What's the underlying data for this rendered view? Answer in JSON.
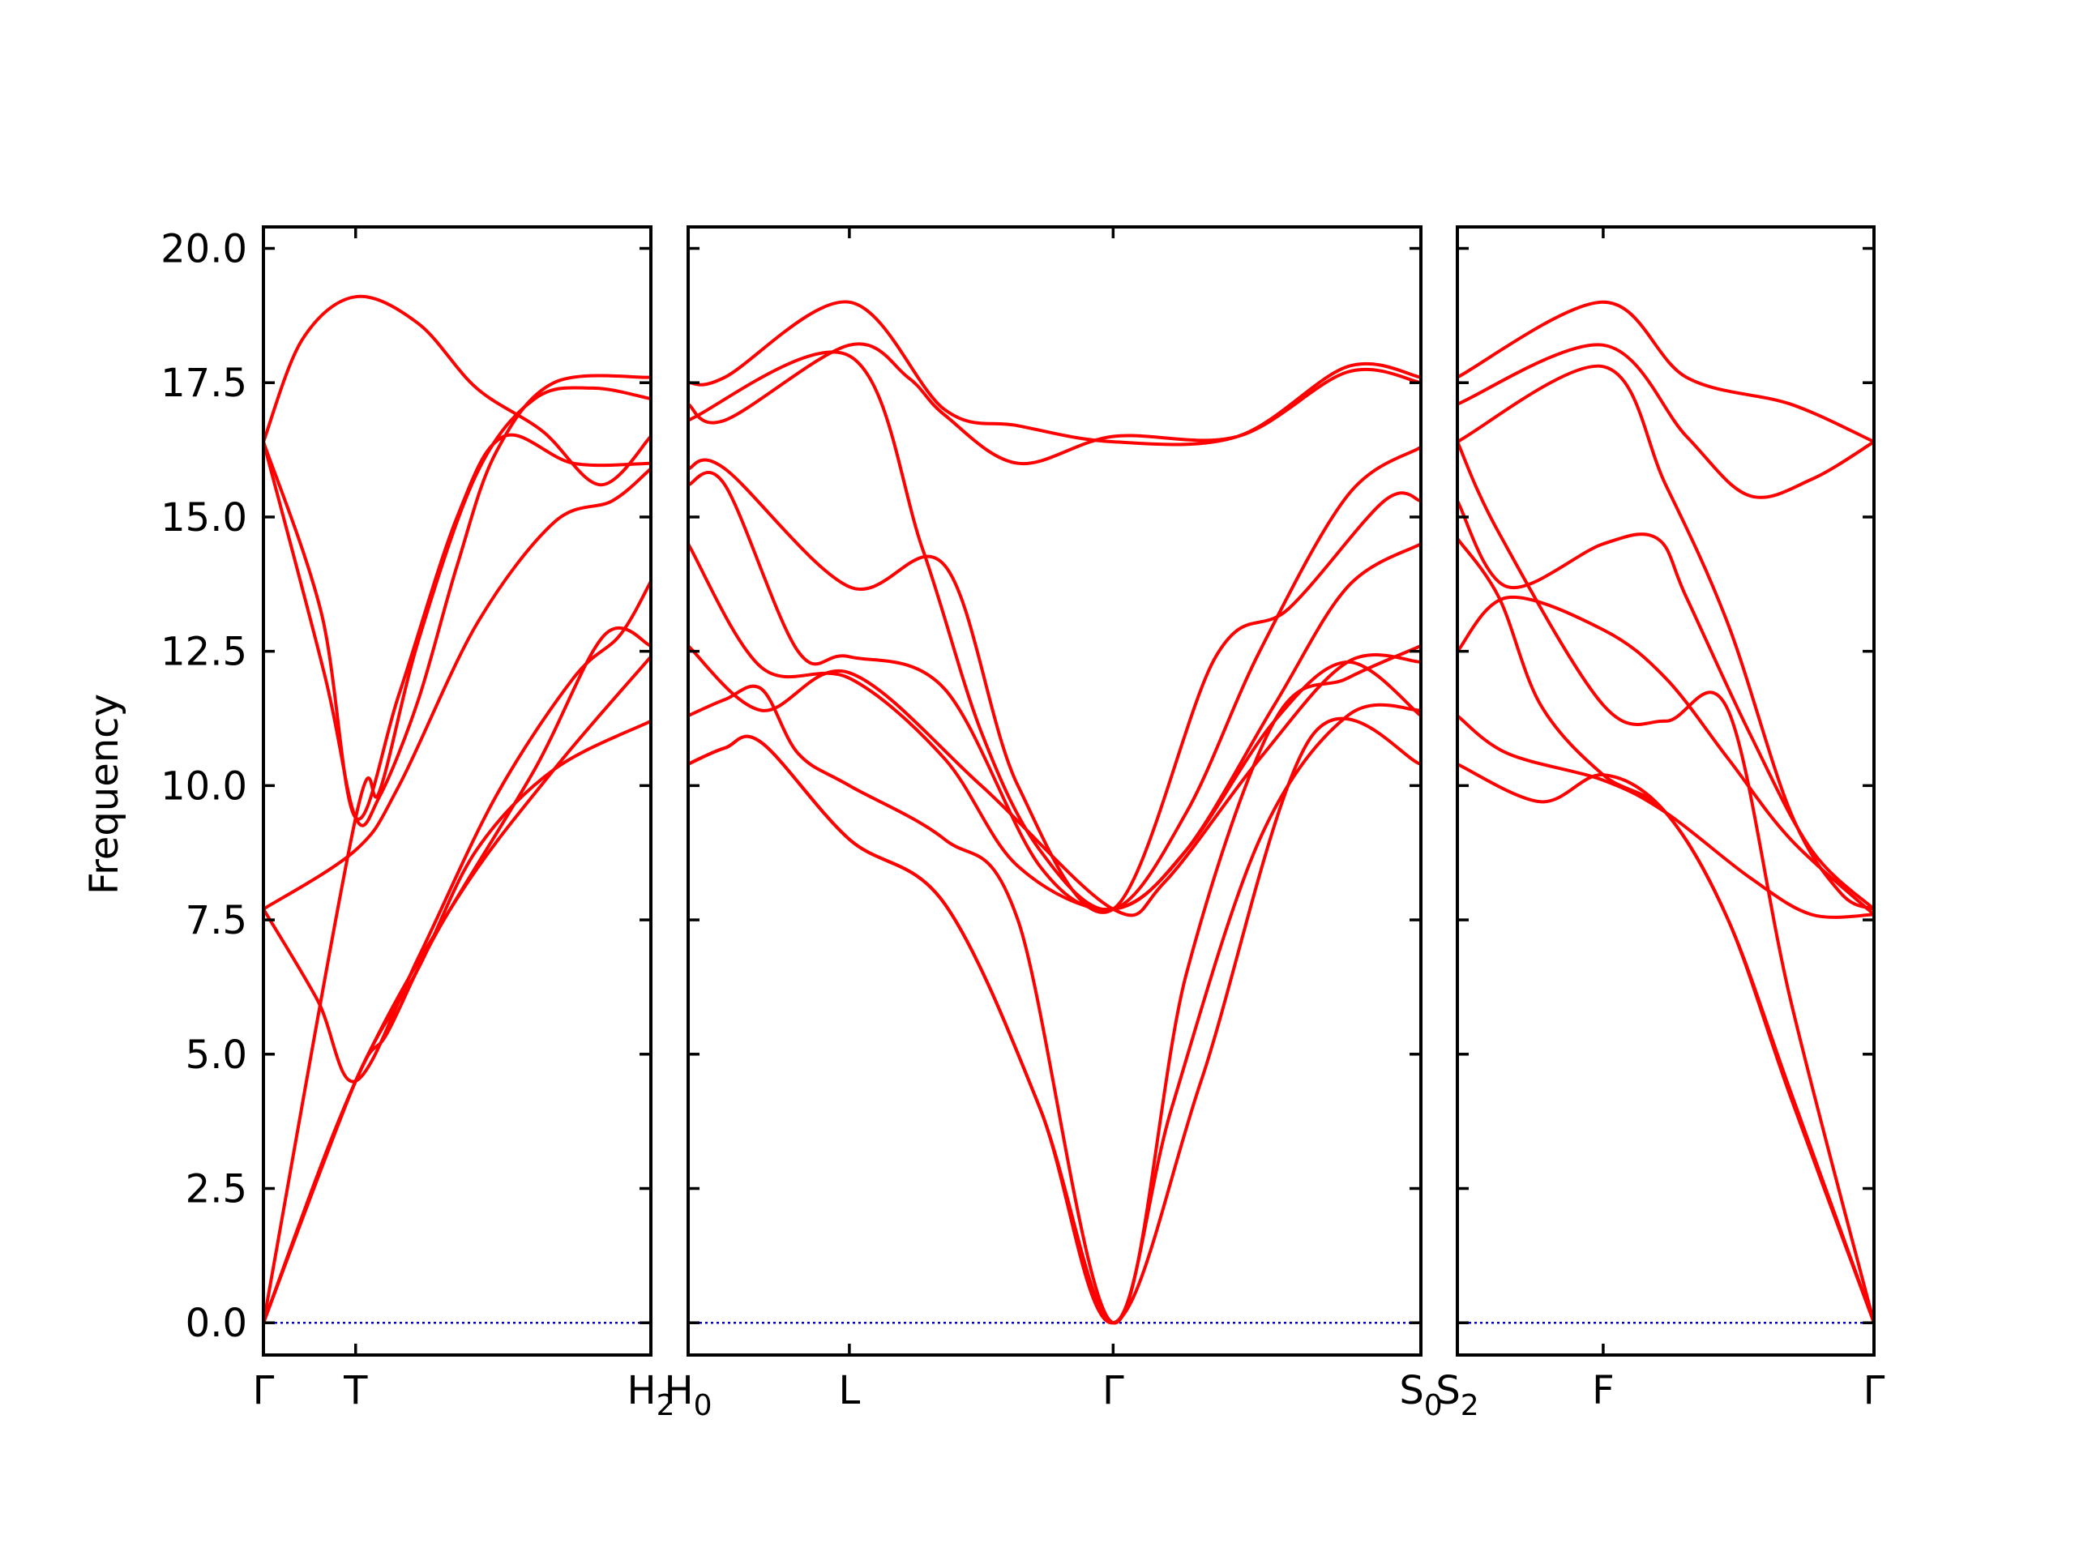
{
  "chart_data": {
    "type": "line",
    "ylabel": "Frequency",
    "ylim": [
      -0.6,
      20.4
    ],
    "yticks": [
      0.0,
      2.5,
      5.0,
      7.5,
      10.0,
      12.5,
      15.0,
      17.5,
      20.0
    ],
    "ytick_labels": [
      "0.0",
      "2.5",
      "5.0",
      "7.5",
      "10.0",
      "12.5",
      "15.0",
      "17.5",
      "20.0"
    ],
    "colors": {
      "bands": "#ff0000",
      "zero_line": "#0000cc",
      "frame": "#000000"
    },
    "panels": [
      {
        "name": "Γ-T-H2",
        "xticks": [
          {
            "label": "Γ",
            "sub": "",
            "pos": 0.0
          },
          {
            "label": "T",
            "sub": "",
            "pos": 0.238
          },
          {
            "label": "H",
            "sub": "2",
            "pos": 1.0
          }
        ],
        "bands": [
          [
            [
              0,
              0
            ],
            [
              0.238,
              4.5
            ],
            [
              0.5,
              7.9
            ],
            [
              0.75,
              10.3
            ],
            [
              1,
              12.4
            ]
          ],
          [
            [
              0,
              0
            ],
            [
              0.238,
              9.4
            ],
            [
              0.3,
              9.9
            ],
            [
              0.4,
              12.7
            ],
            [
              0.55,
              15.8
            ],
            [
              0.7,
              17.2
            ],
            [
              0.85,
              17.4
            ],
            [
              1,
              17.2
            ]
          ],
          [
            [
              0,
              7.7
            ],
            [
              0.14,
              6.0
            ],
            [
              0.238,
              4.5
            ],
            [
              0.4,
              6.8
            ],
            [
              0.6,
              9.8
            ],
            [
              0.8,
              12.0
            ],
            [
              0.92,
              12.8
            ],
            [
              1,
              13.8
            ]
          ],
          [
            [
              0,
              7.7
            ],
            [
              0.238,
              8.8
            ],
            [
              0.35,
              10.0
            ],
            [
              0.55,
              13.0
            ],
            [
              0.75,
              14.9
            ],
            [
              0.9,
              15.3
            ],
            [
              1,
              15.9
            ]
          ],
          [
            [
              0,
              16.4
            ],
            [
              0.16,
              12.0
            ],
            [
              0.238,
              9.4
            ],
            [
              0.3,
              9.8
            ],
            [
              0.4,
              11.6
            ],
            [
              0.5,
              14.1
            ],
            [
              0.6,
              16.2
            ],
            [
              0.75,
              17.5
            ],
            [
              1,
              17.6
            ]
          ],
          [
            [
              0,
              16.4
            ],
            [
              0.1,
              18.3
            ],
            [
              0.238,
              19.1
            ],
            [
              0.4,
              18.6
            ],
            [
              0.55,
              17.4
            ],
            [
              0.72,
              16.6
            ],
            [
              0.87,
              15.6
            ],
            [
              1,
              16.5
            ]
          ],
          [
            [
              0,
              0
            ],
            [
              0.238,
              4.5
            ],
            [
              0.32,
              5.4
            ],
            [
              0.45,
              7.3
            ],
            [
              0.7,
              10.3
            ],
            [
              0.88,
              12.8
            ],
            [
              1,
              12.6
            ]
          ],
          [
            [
              0,
              0
            ],
            [
              0.238,
              4.5
            ],
            [
              0.4,
              6.6
            ],
            [
              0.55,
              8.8
            ],
            [
              0.75,
              10.3
            ],
            [
              1,
              11.2
            ]
          ],
          [
            [
              0,
              16.4
            ],
            [
              0.15,
              13.2
            ],
            [
              0.238,
              9.4
            ],
            [
              0.35,
              11.7
            ],
            [
              0.5,
              15.0
            ],
            [
              0.62,
              16.5
            ],
            [
              0.8,
              16.0
            ],
            [
              1,
              16.0
            ]
          ]
        ]
      },
      {
        "name": "H0-L-Γ-S0",
        "xticks": [
          {
            "label": "H",
            "sub": "0",
            "pos": 0.0
          },
          {
            "label": "L",
            "sub": "",
            "pos": 0.22
          },
          {
            "label": "Γ",
            "sub": "",
            "pos": 0.58
          },
          {
            "label": "S",
            "sub": "0",
            "pos": 1.0
          }
        ],
        "bands": [
          [
            [
              0,
              17.5
            ],
            [
              0.05,
              17.6
            ],
            [
              0.22,
              19.0
            ],
            [
              0.35,
              17.0
            ],
            [
              0.45,
              16.7
            ],
            [
              0.58,
              16.4
            ],
            [
              0.75,
              16.5
            ],
            [
              0.9,
              17.8
            ],
            [
              1,
              17.6
            ]
          ],
          [
            [
              0,
              17.1
            ],
            [
              0.05,
              16.8
            ],
            [
              0.22,
              18.2
            ],
            [
              0.3,
              17.6
            ],
            [
              0.35,
              16.9
            ],
            [
              0.45,
              16.0
            ],
            [
              0.58,
              16.5
            ],
            [
              0.75,
              16.5
            ],
            [
              0.9,
              17.7
            ],
            [
              1,
              17.5
            ]
          ],
          [
            [
              0,
              16.8
            ],
            [
              0.22,
              18.0
            ],
            [
              0.32,
              14.4
            ],
            [
              0.4,
              11.0
            ],
            [
              0.48,
              8.8
            ],
            [
              0.58,
              7.7
            ],
            [
              0.68,
              9.5
            ],
            [
              0.78,
              12.5
            ],
            [
              0.9,
              15.4
            ],
            [
              1,
              16.3
            ]
          ],
          [
            [
              0,
              15.9
            ],
            [
              0.05,
              15.9
            ],
            [
              0.22,
              13.7
            ],
            [
              0.35,
              14.1
            ],
            [
              0.45,
              10.0
            ],
            [
              0.58,
              7.7
            ],
            [
              0.72,
              12.4
            ],
            [
              0.82,
              13.3
            ],
            [
              0.95,
              15.3
            ],
            [
              1,
              15.3
            ]
          ],
          [
            [
              0,
              15.6
            ],
            [
              0.05,
              15.6
            ],
            [
              0.15,
              12.5
            ],
            [
              0.22,
              12.4
            ],
            [
              0.35,
              11.8
            ],
            [
              0.48,
              8.5
            ],
            [
              0.58,
              7.7
            ],
            [
              0.68,
              8.8
            ],
            [
              0.8,
              11.5
            ],
            [
              0.9,
              13.7
            ],
            [
              1,
              14.5
            ]
          ],
          [
            [
              0,
              14.5
            ],
            [
              0.1,
              12.2
            ],
            [
              0.22,
              12.0
            ],
            [
              0.35,
              10.5
            ],
            [
              0.45,
              8.5
            ],
            [
              0.58,
              7.7
            ],
            [
              0.68,
              8.8
            ],
            [
              0.8,
              11.2
            ],
            [
              0.9,
              12.3
            ],
            [
              1,
              11.3
            ]
          ],
          [
            [
              0,
              12.6
            ],
            [
              0.1,
              11.4
            ],
            [
              0.22,
              12.1
            ],
            [
              0.4,
              10.0
            ],
            [
              0.58,
              7.7
            ],
            [
              0.65,
              8.2
            ],
            [
              0.78,
              10.5
            ],
            [
              0.9,
              12.3
            ],
            [
              1,
              12.3
            ]
          ],
          [
            [
              0,
              11.3
            ],
            [
              0.05,
              11.6
            ],
            [
              0.1,
              11.8
            ],
            [
              0.15,
              10.6
            ],
            [
              0.22,
              10.0
            ],
            [
              0.35,
              9.0
            ],
            [
              0.45,
              7.5
            ],
            [
              0.58,
              0
            ],
            [
              0.68,
              6.5
            ],
            [
              0.8,
              11.2
            ],
            [
              0.9,
              12.0
            ],
            [
              1,
              12.6
            ]
          ],
          [
            [
              0,
              10.4
            ],
            [
              0.05,
              10.7
            ],
            [
              0.1,
              10.8
            ],
            [
              0.22,
              9.0
            ],
            [
              0.35,
              7.8
            ],
            [
              0.48,
              4.0
            ],
            [
              0.58,
              0
            ],
            [
              0.7,
              4.5
            ],
            [
              0.85,
              10.9
            ],
            [
              1,
              10.4
            ]
          ],
          [
            [
              0,
              10.4
            ],
            [
              0.05,
              10.7
            ],
            [
              0.1,
              10.8
            ],
            [
              0.22,
              9.0
            ],
            [
              0.35,
              7.8
            ],
            [
              0.48,
              4.0
            ],
            [
              0.58,
              0
            ],
            [
              0.66,
              4.0
            ],
            [
              0.78,
              9.0
            ],
            [
              0.9,
              11.3
            ],
            [
              1,
              11.4
            ]
          ]
        ]
      },
      {
        "name": "S2-F-Γ",
        "xticks": [
          {
            "label": "S",
            "sub": "2",
            "pos": 0.0
          },
          {
            "label": "F",
            "sub": "",
            "pos": 0.35
          },
          {
            "label": "Γ",
            "sub": "",
            "pos": 1.0
          }
        ],
        "bands": [
          [
            [
              0,
              17.6
            ],
            [
              0.35,
              19.0
            ],
            [
              0.55,
              17.6
            ],
            [
              0.8,
              17.1
            ],
            [
              1,
              16.4
            ]
          ],
          [
            [
              0,
              17.1
            ],
            [
              0.35,
              18.2
            ],
            [
              0.55,
              16.5
            ],
            [
              0.7,
              15.4
            ],
            [
              0.85,
              15.7
            ],
            [
              1,
              16.4
            ]
          ],
          [
            [
              0,
              16.4
            ],
            [
              0.35,
              17.8
            ],
            [
              0.5,
              15.6
            ],
            [
              0.65,
              13.0
            ],
            [
              0.8,
              9.5
            ],
            [
              0.92,
              8.0
            ],
            [
              1,
              7.7
            ]
          ],
          [
            [
              0,
              15.3
            ],
            [
              0.12,
              13.7
            ],
            [
              0.35,
              14.5
            ],
            [
              0.48,
              14.6
            ],
            [
              0.55,
              13.5
            ],
            [
              0.7,
              11.0
            ],
            [
              0.85,
              8.8
            ],
            [
              1,
              7.7
            ]
          ],
          [
            [
              0,
              14.6
            ],
            [
              0.1,
              13.5
            ],
            [
              0.2,
              11.5
            ],
            [
              0.35,
              10.2
            ],
            [
              0.5,
              9.5
            ],
            [
              0.65,
              7.5
            ],
            [
              0.8,
              4.2
            ],
            [
              1,
              0
            ]
          ],
          [
            [
              0,
              12.5
            ],
            [
              0.12,
              13.5
            ],
            [
              0.35,
              12.9
            ],
            [
              0.5,
              12.0
            ],
            [
              0.65,
              10.5
            ],
            [
              0.8,
              9.0
            ],
            [
              1,
              7.6
            ]
          ],
          [
            [
              0,
              16.4
            ],
            [
              0.1,
              14.7
            ],
            [
              0.35,
              11.5
            ],
            [
              0.5,
              11.2
            ],
            [
              0.65,
              11.4
            ],
            [
              0.8,
              6.0
            ],
            [
              1,
              0
            ]
          ],
          [
            [
              0,
              11.3
            ],
            [
              0.12,
              10.6
            ],
            [
              0.35,
              10.1
            ],
            [
              0.5,
              9.5
            ],
            [
              0.7,
              8.3
            ],
            [
              0.85,
              7.6
            ],
            [
              1,
              7.6
            ]
          ],
          [
            [
              0,
              10.4
            ],
            [
              0.2,
              9.7
            ],
            [
              0.35,
              10.2
            ],
            [
              0.5,
              9.5
            ],
            [
              0.65,
              7.5
            ],
            [
              0.8,
              4.3
            ],
            [
              1,
              0
            ]
          ]
        ]
      }
    ]
  }
}
